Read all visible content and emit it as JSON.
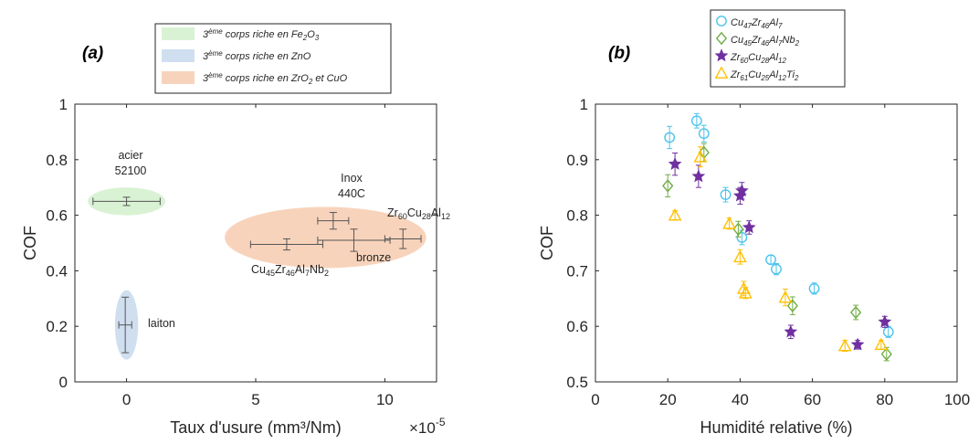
{
  "chart_data": [
    {
      "type": "scatter",
      "panel_label": "(a)",
      "xlabel": "Taux d'usure (mm³/Nm)",
      "x_multiplier": "×10",
      "x_multiplier_exp": "-5",
      "ylabel": "COF",
      "xlim": [
        -2,
        12
      ],
      "ylim": [
        0,
        1
      ],
      "xticks": [
        0,
        5,
        10
      ],
      "yticks": [
        0,
        0.2,
        0.4,
        0.6,
        0.8,
        1
      ],
      "ytick_labels": [
        "0",
        "0.2",
        "0.4",
        "0.6",
        "0.8",
        "1"
      ],
      "grid": false,
      "legend_position": "top-center",
      "legend": [
        {
          "label": "3ème corps riche en Fe₂O₃",
          "color": "#d9f2d3"
        },
        {
          "label": "3ème corps riche en ZnO",
          "color": "#cfdff0"
        },
        {
          "label": "3ème corps riche en ZrO₂ et CuO",
          "color": "#f8d3bb"
        }
      ],
      "regions": [
        {
          "legend_index": 0,
          "cx": 0,
          "cy": 0.65,
          "rx": 1.5,
          "ry": 0.05
        },
        {
          "legend_index": 1,
          "cx": 0,
          "cy": 0.205,
          "rx": 0.45,
          "ry": 0.125
        },
        {
          "legend_index": 2,
          "cx": 7.7,
          "cy": 0.52,
          "rx": 3.9,
          "ry": 0.11
        }
      ],
      "points": [
        {
          "name": "acier 52100",
          "x": 0,
          "y": 0.65,
          "xerr": 1.3,
          "yerr": 0.015
        },
        {
          "name": "laiton",
          "x": -0.05,
          "y": 0.205,
          "xerr": 0.25,
          "yerr": 0.1
        },
        {
          "name": "Inox 440C",
          "x": 8.0,
          "y": 0.58,
          "xerr": 0.6,
          "yerr": 0.03
        },
        {
          "name": "Cu45Zr46Al7Nb2",
          "x": 6.2,
          "y": 0.495,
          "xerr": 1.4,
          "yerr": 0.02
        },
        {
          "name": "bronze",
          "x": 8.8,
          "y": 0.51,
          "xerr": 1.4,
          "yerr": 0.04
        },
        {
          "name": "Zr60Cu28Al12",
          "x": 10.7,
          "y": 0.515,
          "xerr": 0.7,
          "yerr": 0.035
        }
      ],
      "annotations": {
        "acier_line1": "acier",
        "acier_line2": "52100",
        "laiton": "laiton",
        "inox_line1": "Inox",
        "inox_line2": "440C",
        "bronze": "bronze",
        "zr": {
          "t1": "Zr",
          "s1": "60",
          "t2": "Cu",
          "s2": "28",
          "t3": "Al",
          "s3": "12"
        },
        "cu": {
          "t1": "Cu",
          "s1": "45",
          "t2": "Zr",
          "s2": "46",
          "t3": "Al",
          "s3": "7",
          "t4": "Nb",
          "s4": "2"
        }
      }
    },
    {
      "type": "scatter",
      "panel_label": "(b)",
      "xlabel": "Humidité relative (%)",
      "ylabel": "COF",
      "xlim": [
        0,
        100
      ],
      "ylim": [
        0.5,
        1
      ],
      "xticks": [
        0,
        20,
        40,
        60,
        80,
        100
      ],
      "yticks": [
        0.5,
        0.6,
        0.7,
        0.8,
        0.9,
        1
      ],
      "ytick_labels": [
        "0.5",
        "0.6",
        "0.7",
        "0.8",
        "0.9",
        "1"
      ],
      "grid": false,
      "legend_position": "top-center",
      "series": [
        {
          "name": "Cu₄₇Zr₄₆Al₇",
          "marker": "circle",
          "color": "#4cc3ec",
          "x": [
            20.5,
            28,
            30,
            36,
            40.5,
            48.5,
            50,
            60.5,
            81
          ],
          "y": [
            0.94,
            0.97,
            0.947,
            0.837,
            0.76,
            0.72,
            0.703,
            0.668,
            0.59
          ],
          "err": [
            0.02,
            0.013,
            0.015,
            0.013,
            0.013,
            0.008,
            0.01,
            0.01,
            0.01
          ]
        },
        {
          "name": "Cu₄₅Zr₄₆Al₇Nb₂",
          "marker": "diamond",
          "color": "#70ad47",
          "x": [
            20,
            30,
            39.5,
            54.5,
            72,
            80.5
          ],
          "y": [
            0.853,
            0.913,
            0.775,
            0.637,
            0.625,
            0.55
          ],
          "err": [
            0.02,
            0.016,
            0.014,
            0.016,
            0.013,
            0.012
          ]
        },
        {
          "name": "Zr₆₀Cu₂₈Al₁₂",
          "marker": "star",
          "color": "#7030a0",
          "x": [
            22,
            28.5,
            40,
            40.5,
            42.5,
            54,
            72.5,
            80
          ],
          "y": [
            0.892,
            0.87,
            0.835,
            0.844,
            0.778,
            0.59,
            0.567,
            0.608
          ],
          "err": [
            0.02,
            0.02,
            0.015,
            0.015,
            0.012,
            0.012,
            0.008,
            0.01
          ]
        },
        {
          "name": "Zr₆₁Cu₂₅Al₁₂Ti₂",
          "marker": "triangle",
          "color": "#ffc000",
          "x": [
            22,
            29,
            37,
            40,
            41,
            41.5,
            52.5,
            69,
            79
          ],
          "y": [
            0.8,
            0.905,
            0.785,
            0.725,
            0.668,
            0.66,
            0.652,
            0.565,
            0.567
          ],
          "err": [
            0.008,
            0.018,
            0.01,
            0.013,
            0.013,
            0.01,
            0.015,
            0.01,
            0.008
          ]
        }
      ],
      "legend_rich": [
        {
          "t1": "Cu",
          "s1": "47",
          "t2": "Zr",
          "s2": "46",
          "t3": "Al",
          "s3": "7"
        },
        {
          "t1": "Cu",
          "s1": "45",
          "t2": "Zr",
          "s2": "46",
          "t3": "Al",
          "s3": "7",
          "t4": "Nb",
          "s4": "2"
        },
        {
          "t1": "Zr",
          "s1": "60",
          "t2": "Cu",
          "s2": "28",
          "t3": "Al",
          "s3": "12"
        },
        {
          "t1": "Zr",
          "s1": "61",
          "t2": "Cu",
          "s2": "25",
          "t3": "Al",
          "s3": "12",
          "t4": "Ti",
          "s4": "2"
        }
      ]
    }
  ],
  "legend_a_rich": [
    {
      "pre": "3",
      "sup": "ème",
      "mid": " corps riche en Fe",
      "sub": "2",
      "end": "O",
      "sub2": "3"
    },
    {
      "pre": "3",
      "sup": "ème",
      "mid": " corps riche en ZnO"
    },
    {
      "pre": "3",
      "sup": "ème",
      "mid": " corps riche en ZrO",
      "sub": "2",
      "end": " et CuO"
    }
  ]
}
